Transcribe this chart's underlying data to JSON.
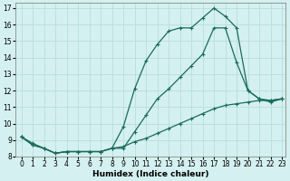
{
  "xlabel": "Humidex (Indice chaleur)",
  "background_color": "#d4f0f0",
  "grid_color": "#b8dede",
  "line_color": "#1a6b5a",
  "xlim": [
    -0.5,
    23.3
  ],
  "ylim": [
    8.0,
    17.3
  ],
  "yticks": [
    8,
    9,
    10,
    11,
    12,
    13,
    14,
    15,
    16,
    17
  ],
  "xticks": [
    0,
    1,
    2,
    3,
    4,
    5,
    6,
    7,
    8,
    9,
    10,
    11,
    12,
    13,
    14,
    15,
    16,
    17,
    18,
    19,
    20,
    21,
    22,
    23
  ],
  "line1_x": [
    0,
    1,
    2,
    3,
    4,
    5,
    6,
    7,
    8,
    9,
    10,
    11,
    12,
    13,
    14,
    15,
    16,
    17,
    18,
    19,
    20,
    21,
    22,
    23
  ],
  "line1_y": [
    9.2,
    8.8,
    8.5,
    8.2,
    8.3,
    8.3,
    8.3,
    8.3,
    8.5,
    8.6,
    8.9,
    9.1,
    9.4,
    9.7,
    10.0,
    10.3,
    10.6,
    10.9,
    11.1,
    11.2,
    11.3,
    11.4,
    11.4,
    11.5
  ],
  "line2_x": [
    0,
    1,
    2,
    3,
    4,
    5,
    6,
    7,
    8,
    9,
    10,
    11,
    12,
    13,
    14,
    15,
    16,
    17,
    18,
    19,
    20,
    21,
    22,
    23
  ],
  "line2_y": [
    9.2,
    8.7,
    8.5,
    8.2,
    8.3,
    8.3,
    8.3,
    8.3,
    8.5,
    9.8,
    12.1,
    13.8,
    14.8,
    15.6,
    15.8,
    15.8,
    16.4,
    17.0,
    16.5,
    15.8,
    12.0,
    11.5,
    11.3,
    11.5
  ],
  "line3_x": [
    0,
    1,
    2,
    3,
    4,
    5,
    6,
    7,
    8,
    9,
    10,
    11,
    12,
    13,
    14,
    15,
    16,
    17,
    18,
    19,
    20,
    21,
    22,
    23
  ],
  "line3_y": [
    9.2,
    8.7,
    8.5,
    8.2,
    8.3,
    8.3,
    8.3,
    8.3,
    8.5,
    8.5,
    9.5,
    10.5,
    11.5,
    12.1,
    12.8,
    13.5,
    14.2,
    15.8,
    15.8,
    13.7,
    12.0,
    11.5,
    11.4,
    11.5
  ],
  "marker": "+",
  "markersize": 3,
  "linewidth": 0.9,
  "tick_fontsize": 5.5,
  "xlabel_fontsize": 6.5
}
